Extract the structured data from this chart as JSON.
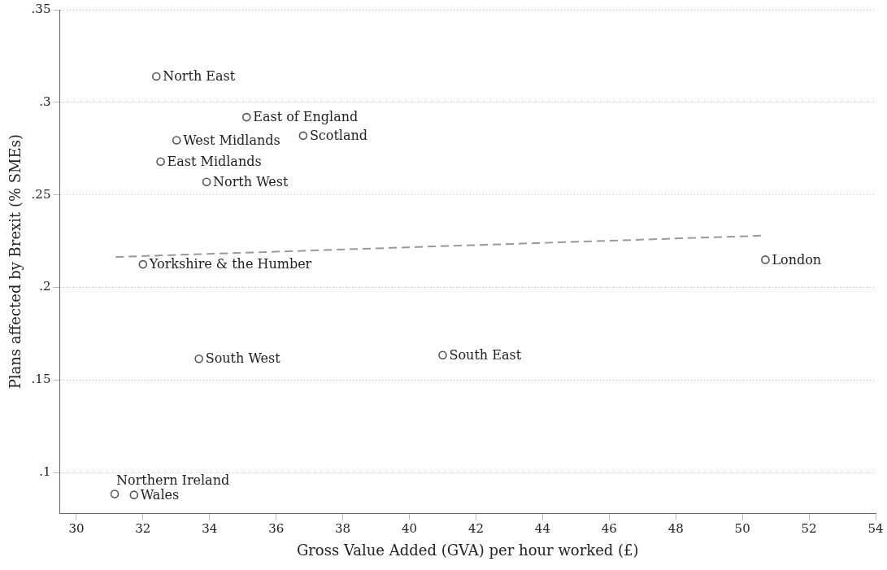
{
  "chart_data": {
    "type": "scatter",
    "xlabel": "Gross Value Added (GVA) per hour worked (£)",
    "ylabel": "Plans affected by Brexit (% SMEs)",
    "xlim": [
      29.5,
      54
    ],
    "ylim": [
      0.078,
      0.35
    ],
    "xticks": [
      30,
      32,
      34,
      36,
      38,
      40,
      42,
      44,
      46,
      48,
      50,
      52,
      54
    ],
    "yticks": [
      {
        "value": 0.1,
        "label": ".1"
      },
      {
        "value": 0.15,
        "label": ".15"
      },
      {
        "value": 0.2,
        "label": ".2"
      },
      {
        "value": 0.25,
        "label": ".25"
      },
      {
        "value": 0.3,
        "label": ".3"
      },
      {
        "value": 0.35,
        "label": ".35"
      }
    ],
    "grid": "y",
    "marker": "circle",
    "series": [
      {
        "color": "#555555",
        "x": [
          32.4,
          35.11,
          36.81,
          33.01,
          32.53,
          33.91,
          32.0,
          50.69,
          33.68,
          41.0,
          31.15,
          31.73
        ],
        "values": [
          0.314,
          0.292,
          0.282,
          0.2795,
          0.268,
          0.257,
          0.2125,
          0.215,
          0.1615,
          0.1635,
          0.0885,
          0.088
        ]
      },
      {
        "type": "line",
        "color": "#999999",
        "line_style": "dashed",
        "marker": "none",
        "x": [
          31.18,
          50.59
        ],
        "values": [
          0.2165,
          0.228
        ]
      }
    ],
    "annotations": [
      {
        "text": "North East",
        "x": 32.4,
        "y": 0.314
      },
      {
        "text": "East of England",
        "x": 35.11,
        "y": 0.292
      },
      {
        "text": "Scotland",
        "x": 36.81,
        "y": 0.282
      },
      {
        "text": "West Midlands",
        "x": 33.01,
        "y": 0.2795
      },
      {
        "text": "East Midlands",
        "x": 32.53,
        "y": 0.268
      },
      {
        "text": "North West",
        "x": 33.91,
        "y": 0.257
      },
      {
        "text": "Yorkshire & the Humber",
        "x": 32.0,
        "y": 0.2125
      },
      {
        "text": "London",
        "x": 50.69,
        "y": 0.215
      },
      {
        "text": "South West",
        "x": 33.68,
        "y": 0.1615
      },
      {
        "text": "South East",
        "x": 41.0,
        "y": 0.1635
      },
      {
        "text": "Northern Ireland",
        "x": 31.15,
        "y": 0.0885
      },
      {
        "text": "Wales",
        "x": 31.73,
        "y": 0.088
      }
    ]
  }
}
